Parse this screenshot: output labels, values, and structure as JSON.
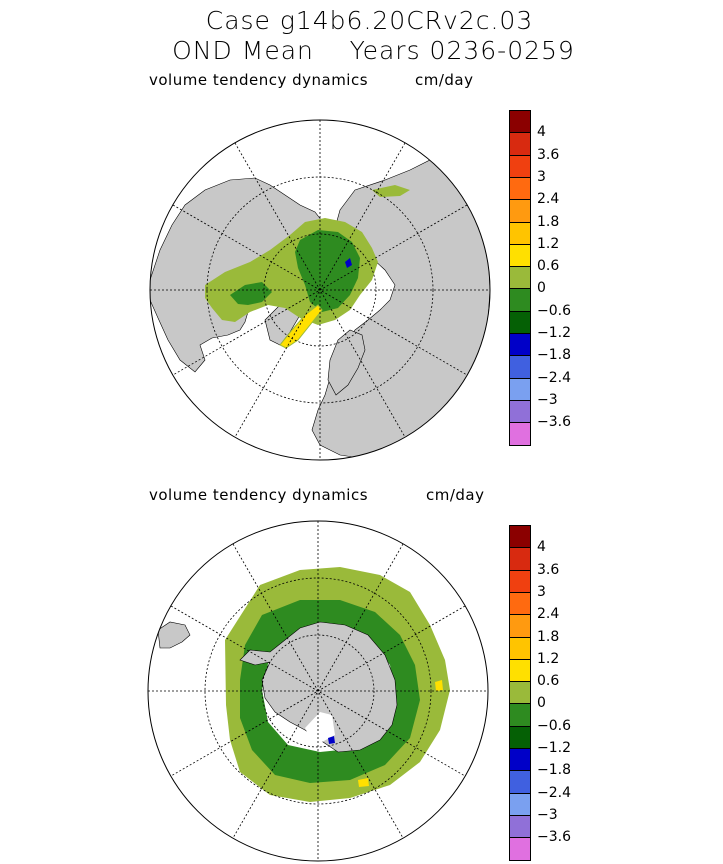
{
  "title": {
    "line1": "Case g14b6.20CRv2c.03",
    "line2": "OND Mean    Years 0236-0259"
  },
  "colors": {
    "land": "#c8c8c8",
    "ocean": "#ffffff",
    "light_green": "#9aba3a",
    "green": "#2e8b20",
    "dark_green": "#056005",
    "yellow": "#ffe000",
    "dark_blue": "#0000c8"
  },
  "colorbar": {
    "labels": [
      "4",
      "3.6",
      "3",
      "2.4",
      "1.8",
      "1.2",
      "0.6",
      "0",
      "−0.6",
      "−1.2",
      "−1.8",
      "−2.4",
      "−3",
      "−3.6"
    ],
    "colors": [
      "#8b0000",
      "#d82a10",
      "#f04010",
      "#ff6a10",
      "#ff9a10",
      "#ffc400",
      "#ffe000",
      "#9aba3a",
      "#2e8b20",
      "#056005",
      "#0000c8",
      "#4060e0",
      "#7aa0f0",
      "#9070d8",
      "#e070e0"
    ]
  },
  "panels": [
    {
      "hemisphere": "north",
      "variable": "volume tendency dynamics",
      "units": "cm/day"
    },
    {
      "hemisphere": "south",
      "variable": "volume tendency dynamics",
      "units": "cm/day"
    }
  ]
}
